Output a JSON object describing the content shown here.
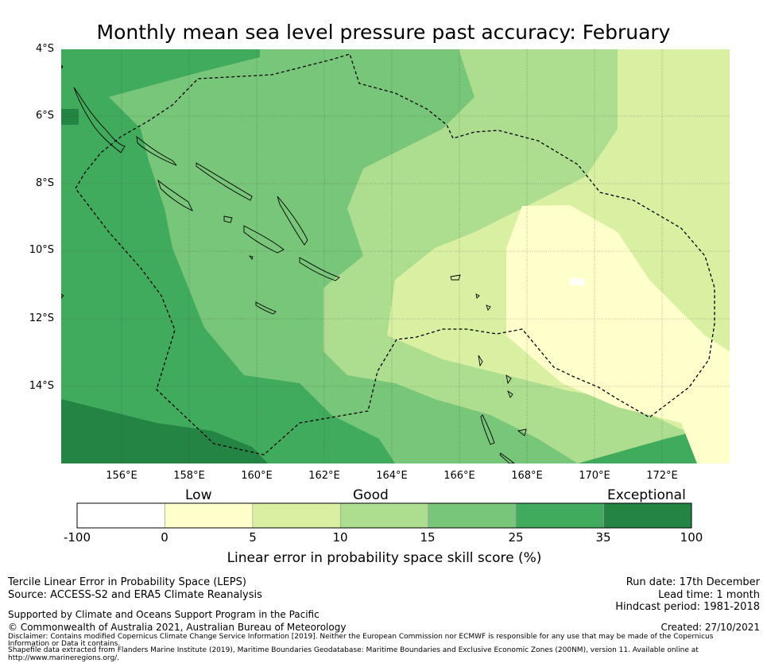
{
  "title": "Monthly mean sea level pressure past accuracy: February",
  "map": {
    "lat_labels": [
      "4°S",
      "6°S",
      "8°S",
      "10°S",
      "12°S",
      "14°S"
    ],
    "lon_labels": [
      "156°E",
      "158°E",
      "160°E",
      "162°E",
      "164°E",
      "166°E",
      "168°E",
      "170°E",
      "172°E"
    ],
    "lon_range": [
      154.2,
      174.0
    ],
    "lat_range": [
      -16.3,
      -4.0
    ]
  },
  "colorbar": {
    "categories": [
      "Low",
      "Good",
      "Exceptional"
    ],
    "ticks": [
      "-100",
      "0",
      "5",
      "10",
      "15",
      "25",
      "35",
      "100"
    ],
    "bins": [
      {
        "from": -100,
        "to": 0,
        "color": "#ffffff"
      },
      {
        "from": 0,
        "to": 5,
        "color": "#ffffcc"
      },
      {
        "from": 5,
        "to": 10,
        "color": "#d9f0a3"
      },
      {
        "from": 10,
        "to": 15,
        "color": "#addd8e"
      },
      {
        "from": 15,
        "to": 25,
        "color": "#78c679"
      },
      {
        "from": 25,
        "to": 35,
        "color": "#41ab5d"
      },
      {
        "from": 35,
        "to": 100,
        "color": "#238443"
      }
    ],
    "label": "Linear error in probability space skill score (%)"
  },
  "footer": {
    "left1": "Tercile Linear Error in Probability Space (LEPS)",
    "left2": "Source: ACCESS-S2 and ERA5 Climate Reanalysis",
    "support": "Supported by Climate and Oceans Support Program in the Pacific",
    "copyright": "© Commonwealth of Australia 2021, Australian Bureau of Meteorology",
    "run_date": "Run date: 17th December",
    "lead_time": "Lead time: 1 month",
    "hindcast": "Hindcast period: 1981-2018",
    "created": "Created: 27/10/2021",
    "disclaimer1": "Disclaimer: Contains modified Copernicus Climate Change Service Information [2019]. Neither the European Commission nor ECMWF is responsible for any use that may be made of the Copernicus",
    "disclaimer2": "Information or Data it contains.",
    "shapefile1": "Shapefile data extracted from Flanders Marine Institute (2019), Maritime Boundaries Geodatabase: Maritime Boundaries and Exclusive Economic Zones (200NM), version 11. Available online at",
    "shapefile2": "http://www.marineregions.org/."
  }
}
